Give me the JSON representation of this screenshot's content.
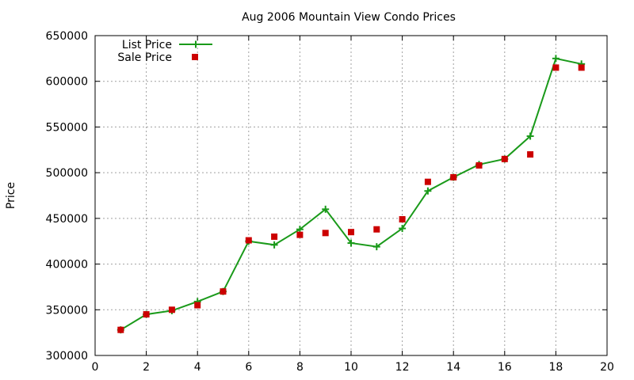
{
  "chart_data": {
    "type": "line",
    "title": "Aug 2006 Mountain View Condo Prices",
    "xlabel": "",
    "ylabel": "Price",
    "xlim": [
      0,
      20
    ],
    "ylim": [
      300000,
      650000
    ],
    "x_ticks": [
      "0",
      "2",
      "4",
      "6",
      "8",
      "10",
      "12",
      "14",
      "16",
      "18",
      "20"
    ],
    "y_ticks": [
      "300000",
      "350000",
      "400000",
      "450000",
      "500000",
      "550000",
      "600000",
      "650000"
    ],
    "grid": true,
    "legend_position": "top-left",
    "series": [
      {
        "name": "List Price",
        "style": "line-with-plus-markers",
        "color": "#1a9a1a",
        "x": [
          1,
          2,
          3,
          4,
          5,
          6,
          7,
          8,
          9,
          10,
          11,
          12,
          13,
          14,
          15,
          16,
          17,
          18,
          19
        ],
        "y": [
          328000,
          345000,
          349000,
          359000,
          370000,
          425000,
          421000,
          438000,
          460000,
          423000,
          419000,
          439000,
          480000,
          495000,
          509000,
          515000,
          540000,
          625000,
          619000
        ]
      },
      {
        "name": "Sale Price",
        "style": "square-markers",
        "color": "#cc0000",
        "x": [
          1,
          2,
          3,
          4,
          5,
          6,
          7,
          8,
          9,
          10,
          11,
          12,
          13,
          14,
          15,
          16,
          17,
          18,
          19
        ],
        "y": [
          328000,
          345000,
          350000,
          355000,
          370000,
          426000,
          430000,
          432000,
          434000,
          435000,
          438000,
          449000,
          490000,
          495000,
          508000,
          515000,
          520000,
          615000,
          615000
        ]
      }
    ]
  }
}
